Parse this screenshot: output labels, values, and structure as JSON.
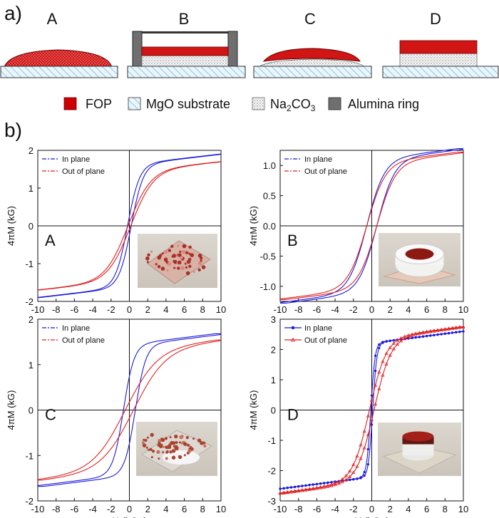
{
  "panel_a": {
    "label": "a)",
    "schematics": [
      "A",
      "B",
      "C",
      "D"
    ]
  },
  "legend": {
    "items": [
      {
        "label": "FOP",
        "pattern": "solid",
        "color": "#cc0000"
      },
      {
        "label": "MgO substrate",
        "pattern": "hatch",
        "color": "#9fd0e6"
      },
      {
        "label": "Na2CO3",
        "label_main": "Na",
        "sub1": "2",
        "mid": "CO",
        "sub2": "3",
        "pattern": "dots",
        "color": "#888888"
      },
      {
        "label": "Alumina ring",
        "pattern": "solid",
        "color": "#6f6f6f"
      }
    ]
  },
  "panel_b": {
    "label": "b)"
  },
  "colors": {
    "in_plane": "#1a1adb",
    "out_of_plane": "#e02020",
    "fop": "#cc0000",
    "hatch": "#9fd0e6",
    "alumina": "#6f6f6f"
  },
  "chart_data": [
    {
      "type": "line",
      "panel": "A",
      "xlabel": "",
      "ylabel": "4πM (kG)",
      "xlim": [
        -10,
        10
      ],
      "ylim": [
        -2,
        2
      ],
      "xticks": [
        -10,
        -8,
        -6,
        -4,
        -2,
        0,
        2,
        4,
        6,
        8,
        10
      ],
      "yticks": [
        -2,
        -1,
        0,
        1,
        2
      ],
      "legend": "top-left",
      "inset": "photo of loose red FOP powder on a square substrate",
      "series": [
        {
          "name": "In plane",
          "Ms": 1.9,
          "Hc": 0.2,
          "a": 1.3,
          "x": [
            -10,
            -8,
            -6,
            -4,
            -2,
            -1,
            0,
            1,
            2,
            4,
            6,
            8,
            10
          ],
          "descending": [
            -1.88,
            -1.79,
            -1.69,
            -1.54,
            -1.27,
            -0.98,
            0.05,
            1.02,
            1.32,
            1.56,
            1.69,
            1.78,
            1.85
          ]
        },
        {
          "name": "Out of plane",
          "Ms": 1.7,
          "Hc": 0.15,
          "a": 2.4,
          "x": [
            -10,
            -8,
            -6,
            -4,
            -2,
            -1,
            0,
            1,
            2,
            4,
            6,
            8,
            10
          ],
          "descending": [
            -1.67,
            -1.55,
            -1.41,
            -1.2,
            -0.82,
            -0.5,
            0.03,
            0.47,
            0.8,
            1.14,
            1.35,
            1.47,
            1.55
          ]
        }
      ]
    },
    {
      "type": "line",
      "panel": "B",
      "xlabel": "",
      "ylabel": "4πM (kG)",
      "xlim": [
        -10,
        10
      ],
      "ylim": [
        -1.25,
        1.25
      ],
      "xticks": [
        -10,
        -8,
        -6,
        -4,
        -2,
        0,
        2,
        4,
        6,
        8,
        10
      ],
      "yticks": [
        -1.0,
        -0.5,
        0.0,
        0.5,
        1.0
      ],
      "legend": "top-left",
      "inset": "photo of white alumina ring filled with red FOP",
      "series": [
        {
          "name": "In plane",
          "Ms": 1.28,
          "Hc": 0.55,
          "a": 1.9,
          "x": [
            -10,
            -8,
            -6,
            -4,
            -2,
            -1,
            0,
            1,
            2,
            4,
            6,
            8,
            10
          ],
          "descending": [
            -1.2,
            -1.11,
            -1.01,
            -0.86,
            -0.6,
            -0.27,
            0.28,
            0.6,
            0.74,
            0.92,
            1.03,
            1.12,
            1.2
          ]
        },
        {
          "name": "Out of plane",
          "Ms": 1.22,
          "Hc": 0.55,
          "a": 2.0,
          "x": [
            -10,
            -8,
            -6,
            -4,
            -2,
            -1,
            0,
            1,
            2,
            4,
            6,
            8,
            10
          ],
          "descending": [
            -1.15,
            -1.06,
            -0.96,
            -0.82,
            -0.58,
            -0.26,
            0.27,
            0.58,
            0.71,
            0.88,
            0.98,
            1.07,
            1.14
          ]
        }
      ]
    },
    {
      "type": "line",
      "panel": "C",
      "xlabel": "H (kOe)",
      "ylabel": "4πM (kG)",
      "xlim": [
        -10,
        10
      ],
      "ylim": [
        -2,
        2
      ],
      "xticks": [
        -10,
        -8,
        -6,
        -4,
        -2,
        0,
        2,
        4,
        6,
        8,
        10
      ],
      "yticks": [
        -2,
        -1,
        0,
        1,
        2
      ],
      "legend": "top-left",
      "inset": "photo of red FOP powder over white Na2CO3 on substrate",
      "series": [
        {
          "name": "In plane",
          "Ms": 1.68,
          "Hc": 0.65,
          "a": 1.15,
          "x": [
            -10,
            -8,
            -6,
            -4,
            -2,
            -1,
            0,
            1,
            2,
            4,
            6,
            8,
            10
          ],
          "descending": [
            -1.65,
            -1.62,
            -1.57,
            -1.47,
            -1.15,
            -0.55,
            0.35,
            1.0,
            1.36,
            1.55,
            1.61,
            1.64,
            1.66
          ]
        },
        {
          "name": "Out of plane",
          "Ms": 1.55,
          "Hc": 0.45,
          "a": 3.4,
          "x": [
            -10,
            -8,
            -6,
            -4,
            -2,
            -1,
            0,
            1,
            2,
            4,
            6,
            8,
            10
          ],
          "descending": [
            -1.35,
            -1.22,
            -1.06,
            -0.84,
            -0.55,
            -0.32,
            0.18,
            0.5,
            0.72,
            0.98,
            1.15,
            1.27,
            1.36
          ]
        }
      ]
    },
    {
      "type": "line",
      "panel": "D",
      "xlabel": "H (kOe)",
      "ylabel": "4πM (kG)",
      "xlim": [
        -10,
        10
      ],
      "ylim": [
        -3,
        3
      ],
      "xticks": [
        -10,
        -8,
        -6,
        -4,
        -2,
        0,
        2,
        4,
        6,
        8,
        10
      ],
      "yticks": [
        -3,
        -2,
        -1,
        0,
        1,
        2,
        3
      ],
      "legend": "top-left",
      "inset": "photo of red FOP disk on white Na2CO3 on substrate",
      "series": [
        {
          "name": "In plane",
          "Ms": 2.6,
          "Hc": 0.1,
          "a": 0.45,
          "marker": "circle",
          "x": [
            -10,
            -8,
            -6,
            -4,
            -2,
            -1,
            0,
            1,
            2,
            4,
            6,
            8,
            10
          ],
          "descending": [
            -2.5,
            -2.46,
            -2.42,
            -2.37,
            -2.27,
            -2.1,
            0.2,
            2.15,
            2.3,
            2.4,
            2.45,
            2.48,
            2.5
          ]
        },
        {
          "name": "Out of plane",
          "Ms": 2.75,
          "Hc": 0.25,
          "a": 1.8,
          "marker": "triangle",
          "x": [
            -10,
            -8,
            -6,
            -4,
            -2,
            -1,
            0,
            1,
            2,
            4,
            6,
            8,
            10
          ],
          "descending": [
            -2.52,
            -2.42,
            -2.3,
            -2.05,
            -1.45,
            -0.88,
            0.12,
            1.0,
            1.55,
            2.1,
            2.32,
            2.43,
            2.5
          ]
        }
      ]
    }
  ]
}
